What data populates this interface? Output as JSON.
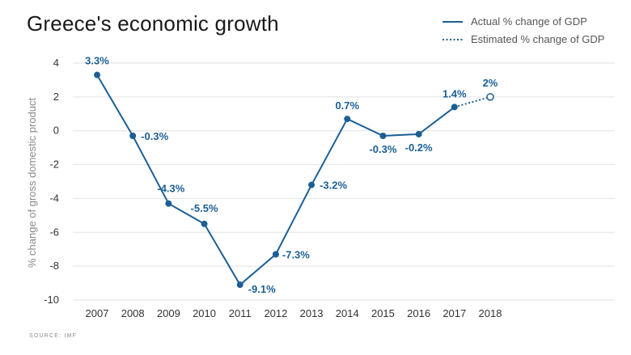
{
  "chart_data": {
    "type": "line",
    "title": "Greece's economic growth",
    "ylabel": "% change of gross domestic product",
    "xlabel": "",
    "ylim": [
      -10,
      4
    ],
    "yticks": [
      4,
      2,
      0,
      -2,
      -4,
      -6,
      -8,
      -10
    ],
    "categories": [
      "2007",
      "2008",
      "2009",
      "2010",
      "2011",
      "2012",
      "2013",
      "2014",
      "2015",
      "2016",
      "2017",
      "2018"
    ],
    "grid": true,
    "legend_position": "top-right",
    "series": [
      {
        "name": "Actual % change of GDP",
        "style": "solid",
        "x": [
          "2007",
          "2008",
          "2009",
          "2010",
          "2011",
          "2012",
          "2013",
          "2014",
          "2015",
          "2016",
          "2017"
        ],
        "values": [
          3.3,
          -0.3,
          -4.3,
          -5.5,
          -9.1,
          -7.3,
          -3.2,
          0.7,
          -0.3,
          -0.2,
          1.4
        ],
        "labels": [
          "3.3%",
          "-0.3%",
          "-4.3%",
          "-5.5%",
          "-9.1%",
          "-7.3%",
          "-3.2%",
          "0.7%",
          "-0.3%",
          "-0.2%",
          "1.4%"
        ]
      },
      {
        "name": "Estimated % change of GDP",
        "style": "dotted",
        "x": [
          "2017",
          "2018"
        ],
        "values": [
          1.4,
          2
        ],
        "labels": [
          "",
          "2%"
        ]
      }
    ],
    "source": "SOURCE: IMF"
  },
  "colors": {
    "line": "#1b5f95",
    "zero_tick": "#c0392b",
    "grid": "#e2e2e2"
  }
}
